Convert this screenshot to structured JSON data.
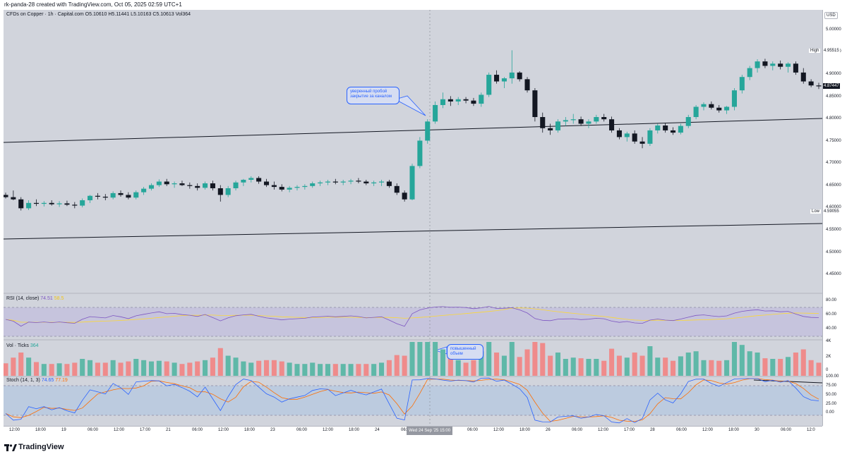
{
  "header": {
    "caption": "rk-panda-28 created with TradingView.com, Oct 05, 2025 02:59 UTC+1"
  },
  "main_legend": {
    "symbol": "CFDs on Copper · 1h · Capital.com",
    "open": "O5.10610",
    "high": "H5.11441",
    "low": "L5.10163",
    "close": "C5.10613",
    "vol": "Vol364"
  },
  "currency": "USD",
  "price_axis": {
    "ticks": [
      "5.00000",
      "4.95000",
      "4.90000",
      "4.85000",
      "4.80000",
      "4.75000",
      "4.70000",
      "4.65000",
      "4.60000",
      "4.55000",
      "4.50000",
      "4.45000"
    ],
    "high_tag": {
      "label": "High",
      "value": "4.95515"
    },
    "low_tag": {
      "label": "Low",
      "value": "4.59055"
    },
    "current_value": "4.87447",
    "range": [
      4.42,
      5.03
    ]
  },
  "callouts": {
    "breakout": "уверенный пробой закрытие за каналом",
    "volume": "повышенный объем"
  },
  "rsi": {
    "legend": "RSI (14, close)",
    "value1": "74.51",
    "value2": "58.5",
    "ticks": [
      "80.00",
      "60.00",
      "40.00"
    ]
  },
  "volume": {
    "legend": "Vol · Ticks",
    "value": "364",
    "ticks": [
      "4K",
      "2K",
      "0"
    ]
  },
  "stoch": {
    "legend": "Stoch (14, 1, 3)",
    "value1": "74.65",
    "value2": "77.19",
    "ticks": [
      "100.00",
      "75.00",
      "50.00",
      "25.00",
      "0.00"
    ]
  },
  "time_axis": {
    "labels": [
      "12:00",
      "18:00",
      "19",
      "06:00",
      "12:00",
      "17:00",
      "21",
      "06:00",
      "12:00",
      "18:00",
      "23",
      "06:00",
      "12:00",
      "18:00",
      "24",
      "06:00",
      "25",
      "06:00",
      "12:00",
      "18:00",
      "26",
      "06:00",
      "12:00",
      "17:00",
      "28",
      "06:00",
      "12:00",
      "18:00",
      "30",
      "06:00",
      "12:0"
    ],
    "crosshair_label": "Wed 24 Sep '25  15:00"
  },
  "footer": {
    "brand": "TradingView"
  },
  "colors": {
    "up": "#26a69a",
    "down": "#131722",
    "rsi": "#7e57c2",
    "rsi_ma": "#fdd835",
    "stoch_k": "#2962ff",
    "stoch_d": "#ff6d00",
    "vol_up": "#5fb8a8",
    "vol_down": "#ef8b8b",
    "callout": "#2962ff"
  },
  "chart_data": {
    "type": "candlestick",
    "interval": "1h",
    "ylim": [
      4.42,
      5.03
    ],
    "candles": [
      [
        4.63,
        4.635,
        4.622,
        4.625
      ],
      [
        4.625,
        4.64,
        4.618,
        4.62
      ],
      [
        4.62,
        4.625,
        4.595,
        4.6
      ],
      [
        4.6,
        4.618,
        4.596,
        4.612
      ],
      [
        4.612,
        4.62,
        4.605,
        4.61
      ],
      [
        4.61,
        4.616,
        4.604,
        4.612
      ],
      [
        4.612,
        4.618,
        4.606,
        4.609
      ],
      [
        4.609,
        4.616,
        4.603,
        4.611
      ],
      [
        4.611,
        4.617,
        4.605,
        4.608
      ],
      [
        4.608,
        4.614,
        4.6,
        4.606
      ],
      [
        4.606,
        4.622,
        4.602,
        4.618
      ],
      [
        4.618,
        4.63,
        4.612,
        4.628
      ],
      [
        4.628,
        4.634,
        4.62,
        4.626
      ],
      [
        4.626,
        4.632,
        4.618,
        4.624
      ],
      [
        4.624,
        4.638,
        4.62,
        4.634
      ],
      [
        4.634,
        4.64,
        4.626,
        4.63
      ],
      [
        4.63,
        4.636,
        4.62,
        4.624
      ],
      [
        4.624,
        4.64,
        4.62,
        4.636
      ],
      [
        4.636,
        4.648,
        4.63,
        4.644
      ],
      [
        4.644,
        4.656,
        4.64,
        4.652
      ],
      [
        4.652,
        4.665,
        4.648,
        4.66
      ],
      [
        4.66,
        4.666,
        4.65,
        4.654
      ],
      [
        4.654,
        4.66,
        4.646,
        4.656
      ],
      [
        4.656,
        4.662,
        4.65,
        4.652
      ],
      [
        4.652,
        4.658,
        4.644,
        4.65
      ],
      [
        4.65,
        4.656,
        4.64,
        4.646
      ],
      [
        4.646,
        4.66,
        4.642,
        4.656
      ],
      [
        4.656,
        4.662,
        4.64,
        4.645
      ],
      [
        4.645,
        4.652,
        4.615,
        4.63
      ],
      [
        4.63,
        4.65,
        4.625,
        4.645
      ],
      [
        4.645,
        4.662,
        4.64,
        4.658
      ],
      [
        4.658,
        4.666,
        4.65,
        4.664
      ],
      [
        4.664,
        4.672,
        4.658,
        4.668
      ],
      [
        4.668,
        4.672,
        4.655,
        4.66
      ],
      [
        4.66,
        4.666,
        4.648,
        4.652
      ],
      [
        4.652,
        4.66,
        4.642,
        4.648
      ],
      [
        4.648,
        4.654,
        4.638,
        4.642
      ],
      [
        4.642,
        4.65,
        4.636,
        4.646
      ],
      [
        4.646,
        4.652,
        4.64,
        4.648
      ],
      [
        4.648,
        4.654,
        4.642,
        4.65
      ],
      [
        4.65,
        4.66,
        4.646,
        4.656
      ],
      [
        4.656,
        4.662,
        4.65,
        4.658
      ],
      [
        4.658,
        4.664,
        4.652,
        4.66
      ],
      [
        4.66,
        4.666,
        4.654,
        4.658
      ],
      [
        4.658,
        4.664,
        4.652,
        4.66
      ],
      [
        4.66,
        4.666,
        4.654,
        4.662
      ],
      [
        4.662,
        4.668,
        4.656,
        4.66
      ],
      [
        4.66,
        4.664,
        4.652,
        4.656
      ],
      [
        4.656,
        4.662,
        4.65,
        4.658
      ],
      [
        4.658,
        4.664,
        4.65,
        4.66
      ],
      [
        4.66,
        4.664,
        4.646,
        4.65
      ],
      [
        4.65,
        4.656,
        4.63,
        4.635
      ],
      [
        4.635,
        4.64,
        4.615,
        4.62
      ],
      [
        4.62,
        4.7,
        4.618,
        4.695
      ],
      [
        4.695,
        4.76,
        4.69,
        4.752
      ],
      [
        4.752,
        4.8,
        4.745,
        4.795
      ],
      [
        4.795,
        4.84,
        4.79,
        4.832
      ],
      [
        4.832,
        4.86,
        4.825,
        4.845
      ],
      [
        4.845,
        4.852,
        4.83,
        4.84
      ],
      [
        4.84,
        4.85,
        4.832,
        4.845
      ],
      [
        4.845,
        4.85,
        4.836,
        4.842
      ],
      [
        4.842,
        4.848,
        4.83,
        4.835
      ],
      [
        4.835,
        4.86,
        4.828,
        4.855
      ],
      [
        4.855,
        4.905,
        4.85,
        4.9
      ],
      [
        4.9,
        4.91,
        4.88,
        4.885
      ],
      [
        4.885,
        4.895,
        4.87,
        4.892
      ],
      [
        4.892,
        4.955,
        4.88,
        4.905
      ],
      [
        4.905,
        4.908,
        4.885,
        4.89
      ],
      [
        4.89,
        4.895,
        4.86,
        4.865
      ],
      [
        4.865,
        4.87,
        4.795,
        4.805
      ],
      [
        4.805,
        4.815,
        4.77,
        4.78
      ],
      [
        4.78,
        4.79,
        4.765,
        4.775
      ],
      [
        4.775,
        4.8,
        4.77,
        4.795
      ],
      [
        4.795,
        4.805,
        4.785,
        4.798
      ],
      [
        4.798,
        4.812,
        4.79,
        4.8
      ],
      [
        4.8,
        4.806,
        4.785,
        4.79
      ],
      [
        4.79,
        4.8,
        4.78,
        4.795
      ],
      [
        4.795,
        4.81,
        4.79,
        4.805
      ],
      [
        4.805,
        4.812,
        4.795,
        4.8
      ],
      [
        4.8,
        4.806,
        4.77,
        4.775
      ],
      [
        4.775,
        4.78,
        4.755,
        4.76
      ],
      [
        4.76,
        4.772,
        4.75,
        4.768
      ],
      [
        4.768,
        4.775,
        4.745,
        4.75
      ],
      [
        4.75,
        4.76,
        4.735,
        4.745
      ],
      [
        4.745,
        4.78,
        4.74,
        4.775
      ],
      [
        4.775,
        4.79,
        4.768,
        4.786
      ],
      [
        4.786,
        4.792,
        4.77,
        4.775
      ],
      [
        4.775,
        4.782,
        4.765,
        4.77
      ],
      [
        4.77,
        4.79,
        4.766,
        4.785
      ],
      [
        4.785,
        4.81,
        4.78,
        4.805
      ],
      [
        4.805,
        4.832,
        4.8,
        4.828
      ],
      [
        4.828,
        4.838,
        4.82,
        4.834
      ],
      [
        4.834,
        4.84,
        4.822,
        4.826
      ],
      [
        4.826,
        4.832,
        4.815,
        4.82
      ],
      [
        4.82,
        4.83,
        4.812,
        4.828
      ],
      [
        4.828,
        4.87,
        4.82,
        4.865
      ],
      [
        4.865,
        4.9,
        4.858,
        4.895
      ],
      [
        4.895,
        4.92,
        4.888,
        4.915
      ],
      [
        4.915,
        4.935,
        4.905,
        4.93
      ],
      [
        4.93,
        4.936,
        4.915,
        4.92
      ],
      [
        4.92,
        4.93,
        4.91,
        4.925
      ],
      [
        4.925,
        4.932,
        4.912,
        4.918
      ],
      [
        4.918,
        4.928,
        4.905,
        4.925
      ],
      [
        4.925,
        4.93,
        4.9,
        4.905
      ],
      [
        4.905,
        4.915,
        4.88,
        4.885
      ],
      [
        4.885,
        4.89,
        4.872,
        4.876
      ],
      [
        4.876,
        4.882,
        4.868,
        4.874
      ]
    ]
  }
}
